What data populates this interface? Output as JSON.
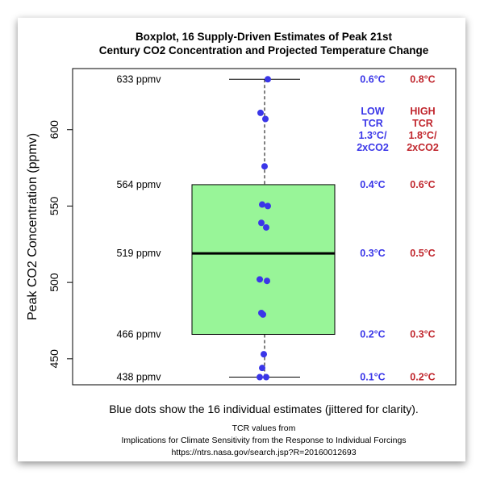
{
  "chart_data": {
    "type": "boxplot",
    "title_line1": "Boxplot, 16 Supply-Driven Estimates of Peak 21st",
    "title_line2": "Century CO2 Concentration and Projected Temperature Change",
    "ylabel": "Peak CO2 Concentration (ppmv)",
    "ylim": [
      433,
      640
    ],
    "yticks": [
      "450",
      "500",
      "550",
      "600"
    ],
    "box": {
      "min": 438,
      "q1": 466,
      "median": 519,
      "q3": 564,
      "max": 633
    },
    "points": [
      633,
      611,
      607,
      576,
      551,
      550,
      539,
      536,
      502,
      501,
      480,
      479,
      453,
      444,
      438,
      438
    ],
    "box_color": "#98f598",
    "point_color": "#3a36e8",
    "rows": [
      {
        "ppmv": "633 ppmv",
        "value": 633,
        "low": "0.6°C",
        "high": "0.8°C"
      },
      {
        "ppmv": "564 ppmv",
        "value": 564,
        "low": "0.4°C",
        "high": "0.6°C"
      },
      {
        "ppmv": "519 ppmv",
        "value": 519,
        "low": "0.3°C",
        "high": "0.5°C"
      },
      {
        "ppmv": "466 ppmv",
        "value": 466,
        "low": "0.2°C",
        "high": "0.3°C"
      },
      {
        "ppmv": "438 ppmv",
        "value": 438,
        "low": "0.1°C",
        "high": "0.2°C"
      }
    ],
    "low_header": [
      "LOW",
      "TCR",
      "1.3°C/",
      "2xCO2"
    ],
    "high_header": [
      "HIGH",
      "TCR",
      "1.8°C/",
      "2xCO2"
    ],
    "low_color": "#3a36e8",
    "high_color": "#c0262d"
  },
  "footer": {
    "note": "Blue dots show the 16 individual estimates (jittered for clarity).",
    "source_line1": "TCR values from",
    "source_line2": "Implications for Climate Sensitivity from the Response to Individual Forcings",
    "source_line3": "https://ntrs.nasa.gov/search.jsp?R=20160012693"
  }
}
